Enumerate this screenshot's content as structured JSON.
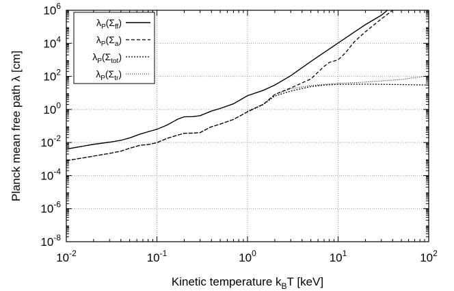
{
  "chart_data": {
    "type": "line",
    "title": "",
    "xlabel": {
      "main": "Kinetic temperature k",
      "sub": "B",
      "tail": "T [keV]"
    },
    "ylabel": "Planck mean free path λ [cm]",
    "xscale": "log",
    "yscale": "log",
    "xlim": [
      0.01,
      100
    ],
    "ylim": [
      1e-08,
      1000000.0
    ],
    "grid": true,
    "legend_position": "top-left",
    "x_ticks": [
      {
        "value": 0.01,
        "base": "10",
        "exp": "-2"
      },
      {
        "value": 0.1,
        "base": "10",
        "exp": "-1"
      },
      {
        "value": 1,
        "base": "10",
        "exp": "0"
      },
      {
        "value": 10,
        "base": "10",
        "exp": "1"
      },
      {
        "value": 100,
        "base": "10",
        "exp": "2"
      }
    ],
    "y_ticks": [
      {
        "value": 1e-08,
        "base": "10",
        "exp": "-8"
      },
      {
        "value": 1e-06,
        "base": "10",
        "exp": "-6"
      },
      {
        "value": 0.0001,
        "base": "10",
        "exp": "-4"
      },
      {
        "value": 0.01,
        "base": "10",
        "exp": "-2"
      },
      {
        "value": 1,
        "base": "10",
        "exp": "0"
      },
      {
        "value": 100,
        "base": "10",
        "exp": "2"
      },
      {
        "value": 10000,
        "base": "10",
        "exp": "4"
      },
      {
        "value": 1000000,
        "base": "10",
        "exp": "6"
      }
    ],
    "series": [
      {
        "name": "λP(Σff)",
        "label_parts": {
          "main": "λ",
          "sub1": "P",
          "mid": "(Σ",
          "sub2": "ff",
          "tail": ")"
        },
        "dash": "solid",
        "points": [
          [
            0.01,
            0.004
          ],
          [
            0.02,
            0.0078
          ],
          [
            0.03,
            0.0105
          ],
          [
            0.04,
            0.0135
          ],
          [
            0.05,
            0.019
          ],
          [
            0.065,
            0.032
          ],
          [
            0.08,
            0.045
          ],
          [
            0.1,
            0.063
          ],
          [
            0.13,
            0.115
          ],
          [
            0.17,
            0.26
          ],
          [
            0.2,
            0.36
          ],
          [
            0.25,
            0.37
          ],
          [
            0.3,
            0.42
          ],
          [
            0.4,
            0.8
          ],
          [
            0.5,
            1.15
          ],
          [
            0.7,
            2.2
          ],
          [
            1.0,
            6.8
          ],
          [
            1.5,
            14.5
          ],
          [
            2.0,
            30
          ],
          [
            3.0,
            110
          ],
          [
            5.0,
            800
          ],
          [
            10.0,
            10500
          ],
          [
            20.0,
            135000
          ],
          [
            30.0,
            500000
          ],
          [
            35.0,
            1000000
          ]
        ]
      },
      {
        "name": "λP(Σa)",
        "label_parts": {
          "main": "λ",
          "sub1": "P",
          "mid": "(Σ",
          "sub2": "a",
          "tail": ")"
        },
        "dash": "dashed",
        "points": [
          [
            0.01,
            0.0008
          ],
          [
            0.02,
            0.0015
          ],
          [
            0.03,
            0.0022
          ],
          [
            0.04,
            0.003
          ],
          [
            0.05,
            0.0045
          ],
          [
            0.065,
            0.0068
          ],
          [
            0.08,
            0.0075
          ],
          [
            0.1,
            0.0098
          ],
          [
            0.13,
            0.018
          ],
          [
            0.17,
            0.028
          ],
          [
            0.2,
            0.036
          ],
          [
            0.25,
            0.037
          ],
          [
            0.3,
            0.04
          ],
          [
            0.4,
            0.09
          ],
          [
            0.5,
            0.13
          ],
          [
            0.7,
            0.25
          ],
          [
            1.0,
            0.72
          ],
          [
            1.5,
            2.1
          ],
          [
            2.0,
            8
          ],
          [
            3.0,
            20
          ],
          [
            5.0,
            70
          ],
          [
            7.0,
            400
          ],
          [
            8.0,
            700
          ],
          [
            10.0,
            1000
          ],
          [
            12.0,
            2600
          ],
          [
            15.0,
            12000
          ],
          [
            20.0,
            50000
          ],
          [
            30.0,
            300000
          ],
          [
            40.0,
            1000000
          ]
        ]
      },
      {
        "name": "λP(Σtot)",
        "label_parts": {
          "main": "λ",
          "sub1": "P",
          "mid": "(Σ",
          "sub2": "tot",
          "tail": ")"
        },
        "dash": "dotted",
        "points": [
          [
            0.01,
            0.0008
          ],
          [
            0.02,
            0.0015
          ],
          [
            0.03,
            0.0022
          ],
          [
            0.04,
            0.003
          ],
          [
            0.05,
            0.0045
          ],
          [
            0.065,
            0.0068
          ],
          [
            0.08,
            0.0075
          ],
          [
            0.1,
            0.0098
          ],
          [
            0.13,
            0.018
          ],
          [
            0.17,
            0.028
          ],
          [
            0.2,
            0.036
          ],
          [
            0.25,
            0.037
          ],
          [
            0.3,
            0.04
          ],
          [
            0.4,
            0.09
          ],
          [
            0.5,
            0.13
          ],
          [
            0.7,
            0.25
          ],
          [
            1.0,
            0.72
          ],
          [
            1.5,
            2.0
          ],
          [
            2.0,
            6.5
          ],
          [
            3.0,
            13
          ],
          [
            5.0,
            24
          ],
          [
            7.0,
            30
          ],
          [
            10.0,
            33
          ],
          [
            20.0,
            34
          ],
          [
            50.0,
            32
          ],
          [
            100.0,
            30
          ]
        ]
      },
      {
        "name": "λP(Σtr)",
        "label_parts": {
          "main": "λ",
          "sub1": "P",
          "mid": "(Σ",
          "sub2": "tr",
          "tail": ")"
        },
        "dash": "fine-dotted",
        "points": [
          [
            1.0,
            0.8
          ],
          [
            1.5,
            2.1
          ],
          [
            2.0,
            8
          ],
          [
            3.0,
            18
          ],
          [
            5.0,
            28
          ],
          [
            10.0,
            38
          ],
          [
            20.0,
            45
          ],
          [
            50.0,
            65
          ],
          [
            100.0,
            110
          ]
        ]
      }
    ]
  }
}
